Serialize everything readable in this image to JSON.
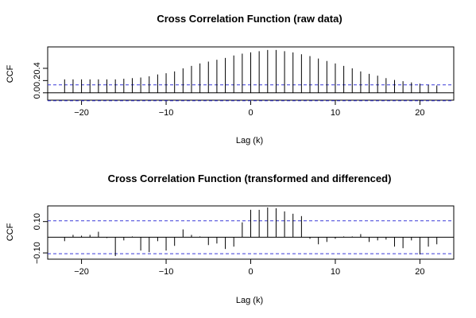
{
  "chart_data": [
    {
      "type": "bar",
      "title": "Cross Correlation Function (raw data)",
      "xlabel": "Lag (k)",
      "ylabel": "CCF",
      "xlim": [
        -24,
        24
      ],
      "ylim": [
        -0.12,
        0.75
      ],
      "xticks": [
        -20,
        -10,
        0,
        10,
        20
      ],
      "yticks": [
        0.0,
        0.2,
        0.4
      ],
      "ci_bounds": [
        0.13,
        -0.13
      ],
      "grid": false,
      "lags": [
        -22,
        -21,
        -20,
        -19,
        -18,
        -17,
        -16,
        -15,
        -14,
        -13,
        -12,
        -11,
        -10,
        -9,
        -8,
        -7,
        -6,
        -5,
        -4,
        -3,
        -2,
        -1,
        0,
        1,
        2,
        3,
        4,
        5,
        6,
        7,
        8,
        9,
        10,
        11,
        12,
        13,
        14,
        15,
        16,
        17,
        18,
        19,
        20,
        21,
        22
      ],
      "values": [
        0.22,
        0.22,
        0.22,
        0.22,
        0.22,
        0.22,
        0.22,
        0.23,
        0.24,
        0.25,
        0.27,
        0.3,
        0.32,
        0.35,
        0.4,
        0.44,
        0.48,
        0.51,
        0.54,
        0.57,
        0.61,
        0.64,
        0.66,
        0.68,
        0.7,
        0.7,
        0.68,
        0.66,
        0.63,
        0.6,
        0.56,
        0.52,
        0.48,
        0.44,
        0.4,
        0.35,
        0.31,
        0.28,
        0.24,
        0.21,
        0.19,
        0.17,
        0.15,
        0.13,
        0.12
      ]
    },
    {
      "type": "bar",
      "title": "Cross Correlation Function (transformed and differenced)",
      "xlabel": "Lag (k)",
      "ylabel": "CCF",
      "xlim": [
        -24,
        24
      ],
      "ylim": [
        -0.14,
        0.2
      ],
      "xticks": [
        -20,
        -10,
        0,
        10,
        20
      ],
      "yticks": [
        -0.1,
        0.1
      ],
      "ci_bounds": [
        0.105,
        -0.105
      ],
      "grid": false,
      "lags": [
        -22,
        -21,
        -20,
        -19,
        -18,
        -17,
        -16,
        -15,
        -14,
        -13,
        -12,
        -11,
        -10,
        -9,
        -8,
        -7,
        -6,
        -5,
        -4,
        -3,
        -2,
        -1,
        0,
        1,
        2,
        3,
        4,
        5,
        6,
        7,
        8,
        9,
        10,
        11,
        12,
        13,
        14,
        15,
        16,
        17,
        18,
        19,
        20,
        21,
        22
      ],
      "values": [
        -0.025,
        0.015,
        0.01,
        0.015,
        0.035,
        -0.005,
        -0.12,
        -0.02,
        0.005,
        -0.085,
        -0.095,
        -0.025,
        -0.085,
        -0.055,
        0.05,
        0.015,
        0.005,
        -0.05,
        -0.04,
        -0.075,
        -0.06,
        0.095,
        0.175,
        0.175,
        0.19,
        0.185,
        0.165,
        0.15,
        0.135,
        -0.01,
        -0.045,
        -0.03,
        -0.01,
        0.005,
        0.005,
        0.02,
        -0.03,
        -0.02,
        -0.015,
        -0.06,
        -0.07,
        -0.02,
        -0.11,
        -0.06,
        -0.045
      ]
    }
  ]
}
